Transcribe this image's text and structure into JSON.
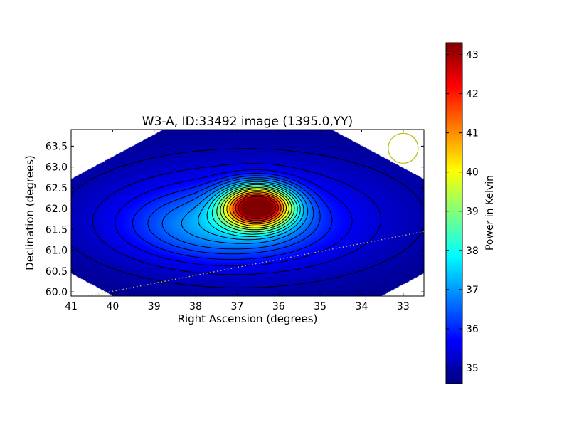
{
  "chart_data": {
    "type": "heatmap",
    "title": "W3-A, ID:33492 image (1395.0,YY)",
    "xlabel": "Right Ascension (degrees)",
    "ylabel": "Declination (degrees)",
    "xlim": [
      41.0,
      32.5
    ],
    "ylim": [
      59.9,
      63.9
    ],
    "xticks": [
      "41",
      "40",
      "39",
      "38",
      "37",
      "36",
      "35",
      "34",
      "33"
    ],
    "yticks": [
      "60.0",
      "60.5",
      "61.0",
      "61.5",
      "62.0",
      "62.5",
      "63.0",
      "63.5"
    ],
    "xtick_values": [
      41,
      40,
      39,
      38,
      37,
      36,
      35,
      34,
      33
    ],
    "ytick_values": [
      60.0,
      60.5,
      61.0,
      61.5,
      62.0,
      62.5,
      63.0,
      63.5
    ],
    "colorbar": {
      "label": "Power in Kelvin",
      "range": [
        34.6,
        43.3
      ],
      "ticks": [
        "35",
        "36",
        "37",
        "38",
        "39",
        "40",
        "41",
        "42",
        "43"
      ],
      "tick_values": [
        35,
        36,
        37,
        38,
        39,
        40,
        41,
        42,
        43
      ],
      "colormap": "jet"
    },
    "sources": [
      {
        "ra": 36.5,
        "dec": 62.05,
        "peak": 8.2,
        "sx": 0.55,
        "sy": 0.33
      },
      {
        "ra": 37.3,
        "dec": 61.6,
        "peak": 1.6,
        "sx": 1.5,
        "sy": 0.55
      },
      {
        "ra": 36.8,
        "dec": 61.8,
        "peak": 1.2,
        "sx": 2.9,
        "sy": 1.1
      }
    ],
    "background": 34.6,
    "contour_levels": [
      35.0,
      35.3,
      35.6,
      35.9,
      36.2,
      36.5,
      36.9,
      37.3,
      37.7,
      38.1,
      38.6,
      39.1,
      39.6,
      40.2,
      40.8,
      41.4,
      42.0,
      42.6
    ],
    "beam": {
      "ra": 33.0,
      "dec": 63.45,
      "radius_deg": 0.36,
      "color": "#bbbb00"
    },
    "dotted_line": {
      "points": [
        [
          40.6,
          59.9
        ],
        [
          32.5,
          61.45
        ]
      ],
      "color": "#cccc44"
    }
  }
}
